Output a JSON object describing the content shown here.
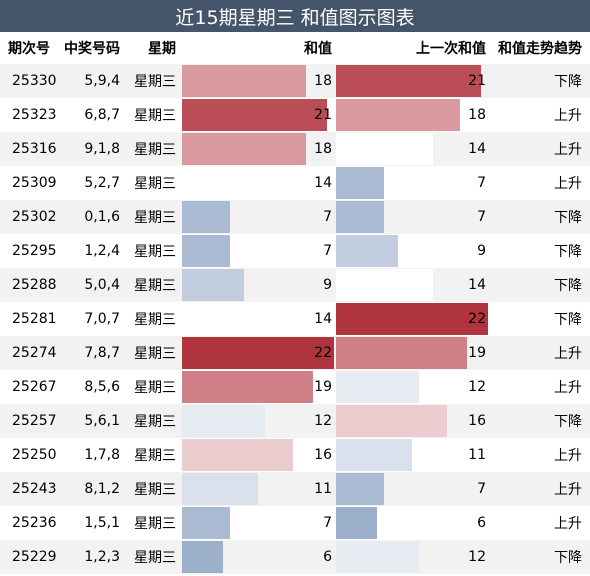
{
  "title": "近15期星期三 和值图示图表",
  "headers": {
    "issue": "期次号",
    "numbers": "中奖号码",
    "weekday": "星期",
    "sum": "和值",
    "prev_sum": "上一次和值",
    "trend": "和值走势趋势"
  },
  "colors": {
    "header_bg": "#44546a",
    "high": "#b0343e",
    "low": "#9db0cb",
    "mid": "#ffffff"
  },
  "rows": [
    {
      "issue": "25330",
      "numbers": "5,9,4",
      "weekday": "星期三",
      "sum": "18",
      "prev_sum": "21",
      "trend": "下降"
    },
    {
      "issue": "25323",
      "numbers": "6,8,7",
      "weekday": "星期三",
      "sum": "21",
      "prev_sum": "18",
      "trend": "上升"
    },
    {
      "issue": "25316",
      "numbers": "9,1,8",
      "weekday": "星期三",
      "sum": "18",
      "prev_sum": "14",
      "trend": "上升"
    },
    {
      "issue": "25309",
      "numbers": "5,2,7",
      "weekday": "星期三",
      "sum": "14",
      "prev_sum": "7",
      "trend": "上升"
    },
    {
      "issue": "25302",
      "numbers": "0,1,6",
      "weekday": "星期三",
      "sum": "7",
      "prev_sum": "7",
      "trend": "下降"
    },
    {
      "issue": "25295",
      "numbers": "1,2,4",
      "weekday": "星期三",
      "sum": "7",
      "prev_sum": "9",
      "trend": "下降"
    },
    {
      "issue": "25288",
      "numbers": "5,0,4",
      "weekday": "星期三",
      "sum": "9",
      "prev_sum": "14",
      "trend": "下降"
    },
    {
      "issue": "25281",
      "numbers": "7,0,7",
      "weekday": "星期三",
      "sum": "14",
      "prev_sum": "22",
      "trend": "下降"
    },
    {
      "issue": "25274",
      "numbers": "7,8,7",
      "weekday": "星期三",
      "sum": "22",
      "prev_sum": "19",
      "trend": "上升"
    },
    {
      "issue": "25267",
      "numbers": "8,5,6",
      "weekday": "星期三",
      "sum": "19",
      "prev_sum": "12",
      "trend": "上升"
    },
    {
      "issue": "25257",
      "numbers": "5,6,1",
      "weekday": "星期三",
      "sum": "12",
      "prev_sum": "16",
      "trend": "下降"
    },
    {
      "issue": "25250",
      "numbers": "1,7,8",
      "weekday": "星期三",
      "sum": "16",
      "prev_sum": "11",
      "trend": "上升"
    },
    {
      "issue": "25243",
      "numbers": "8,1,2",
      "weekday": "星期三",
      "sum": "11",
      "prev_sum": "7",
      "trend": "上升"
    },
    {
      "issue": "25236",
      "numbers": "1,5,1",
      "weekday": "星期三",
      "sum": "7",
      "prev_sum": "6",
      "trend": "上升"
    },
    {
      "issue": "25229",
      "numbers": "1,2,3",
      "weekday": "星期三",
      "sum": "6",
      "prev_sum": "12",
      "trend": "下降"
    }
  ]
}
